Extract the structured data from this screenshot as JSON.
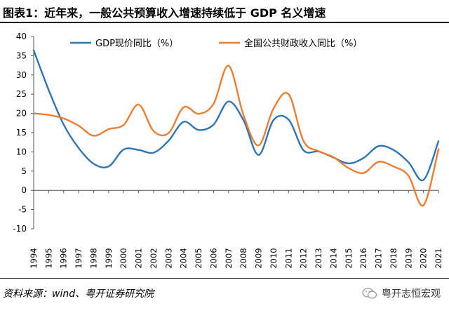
{
  "figure_title": "图表1：近年来，一般公共预算收入增速持续低于 GDP 名义增速",
  "source": "资料来源：wind、粤开证券研究院",
  "brand": "粤开志恒宏观",
  "brand_icon": "wechat-icon",
  "chart_data": {
    "type": "line",
    "title": "",
    "xlabel": "",
    "ylabel": "",
    "categories": [
      "1994",
      "1995",
      "1996",
      "1997",
      "1998",
      "1999",
      "2000",
      "2001",
      "2002",
      "2003",
      "2004",
      "2005",
      "2006",
      "2007",
      "2008",
      "2009",
      "2010",
      "2011",
      "2012",
      "2013",
      "2014",
      "2015",
      "2016",
      "2017",
      "2018",
      "2019",
      "2020",
      "2021"
    ],
    "ylim": [
      -10,
      40
    ],
    "yticks": [
      -10,
      -5,
      0,
      5,
      10,
      15,
      20,
      25,
      30,
      35,
      40
    ],
    "grid": false,
    "legend_position": "top",
    "series": [
      {
        "name": "GDP现价同比（%）",
        "color": "#2e75b6",
        "values": [
          36.4,
          26.1,
          17.1,
          11.0,
          6.9,
          6.2,
          10.6,
          10.5,
          9.8,
          12.9,
          17.8,
          15.7,
          17.1,
          23.1,
          18.2,
          9.2,
          18.3,
          18.4,
          10.4,
          10.1,
          8.5,
          7.0,
          8.4,
          11.5,
          10.5,
          7.3,
          2.7,
          12.8
        ]
      },
      {
        "name": "全国公共财政收入同比（%）",
        "color": "#ed7d31",
        "values": [
          20.0,
          19.6,
          18.7,
          16.8,
          14.2,
          15.9,
          17.0,
          22.3,
          15.4,
          14.9,
          21.6,
          19.9,
          22.5,
          32.4,
          19.5,
          11.7,
          21.3,
          25.0,
          12.8,
          10.2,
          8.6,
          5.8,
          4.5,
          7.4,
          6.2,
          3.8,
          -3.9,
          10.7
        ]
      }
    ]
  }
}
